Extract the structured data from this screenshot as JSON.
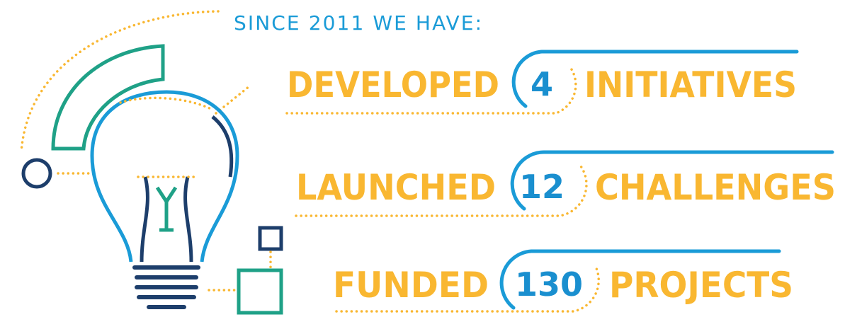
{
  "header": {
    "title": "SINCE 2011 WE HAVE:"
  },
  "rows": [
    {
      "verb": "DEVELOPED",
      "number": "4",
      "noun": "INITIATIVES"
    },
    {
      "verb": "LAUNCHED",
      "number": "12",
      "noun": "CHALLENGES"
    },
    {
      "verb": "FUNDED",
      "number": "130",
      "noun": "PROJECTS"
    }
  ]
}
